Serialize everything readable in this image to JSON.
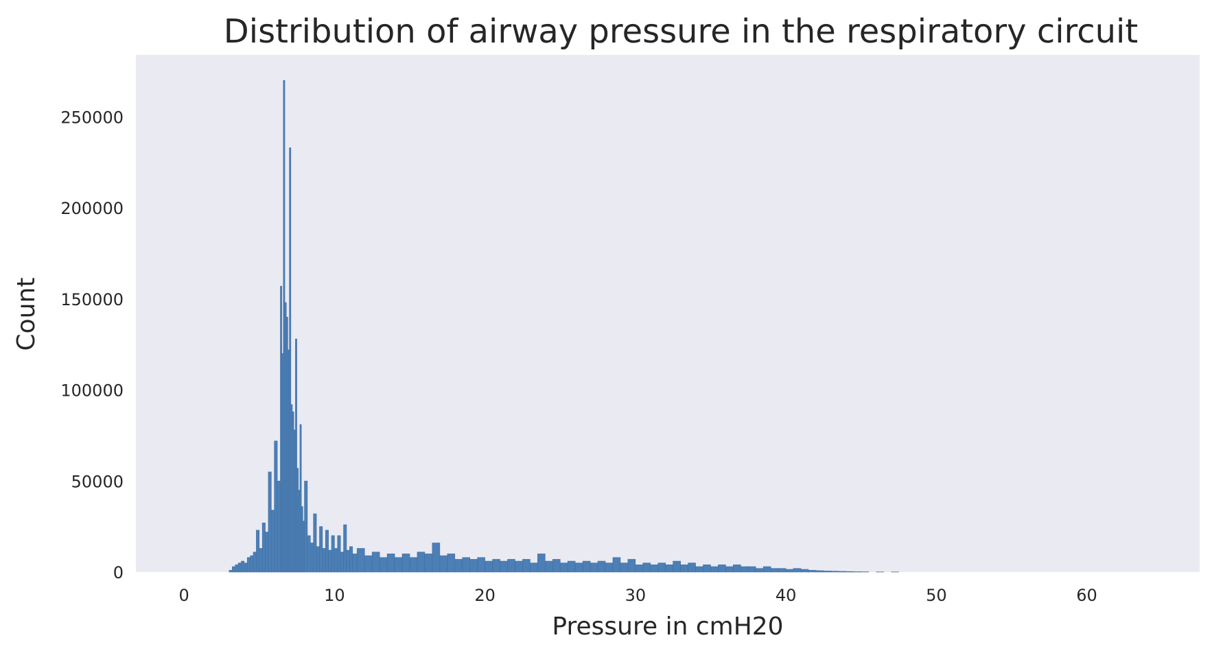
{
  "chart_data": {
    "type": "histogram",
    "title": "Distribution of airway pressure in the respiratory circuit",
    "xlabel": "Pressure in cmH20",
    "ylabel": "Count",
    "xlim": [
      -3.2,
      67.5
    ],
    "ylim": [
      0,
      284000
    ],
    "xticks": [
      0,
      10,
      20,
      30,
      40,
      50,
      60
    ],
    "yticks": [
      0,
      50000,
      100000,
      150000,
      200000,
      250000
    ],
    "grid": false,
    "bar_color": "#4c7fb5",
    "bar_edge_color": "#3f6fa3",
    "plot_background": "#eaeaf2",
    "bins": [
      [
        3.0,
        1000
      ],
      [
        3.2,
        3000
      ],
      [
        3.4,
        4000
      ],
      [
        3.6,
        5000
      ],
      [
        3.8,
        6000
      ],
      [
        4.0,
        5000
      ],
      [
        4.2,
        8000
      ],
      [
        4.4,
        9000
      ],
      [
        4.6,
        11000
      ],
      [
        4.8,
        23000
      ],
      [
        5.0,
        13000
      ],
      [
        5.2,
        27000
      ],
      [
        5.4,
        22000
      ],
      [
        5.6,
        55000
      ],
      [
        5.8,
        34000
      ],
      [
        6.0,
        72000
      ],
      [
        6.2,
        50000
      ],
      [
        6.4,
        157000
      ],
      [
        6.5,
        120000
      ],
      [
        6.6,
        270000
      ],
      [
        6.7,
        148000
      ],
      [
        6.8,
        140000
      ],
      [
        6.9,
        122000
      ],
      [
        7.0,
        233000
      ],
      [
        7.1,
        92000
      ],
      [
        7.2,
        88000
      ],
      [
        7.3,
        78000
      ],
      [
        7.4,
        128000
      ],
      [
        7.5,
        57000
      ],
      [
        7.6,
        45000
      ],
      [
        7.7,
        81000
      ],
      [
        7.8,
        36000
      ],
      [
        7.9,
        28000
      ],
      [
        8.0,
        50000
      ],
      [
        8.2,
        20000
      ],
      [
        8.4,
        16000
      ],
      [
        8.6,
        32000
      ],
      [
        8.8,
        14000
      ],
      [
        9.0,
        25000
      ],
      [
        9.2,
        13000
      ],
      [
        9.4,
        23000
      ],
      [
        9.6,
        12000
      ],
      [
        9.8,
        20000
      ],
      [
        10.0,
        13000
      ],
      [
        10.2,
        20000
      ],
      [
        10.4,
        11000
      ],
      [
        10.6,
        26000
      ],
      [
        10.8,
        12000
      ],
      [
        11.0,
        14000
      ],
      [
        11.2,
        10000
      ],
      [
        11.5,
        13000
      ],
      [
        12.0,
        9000
      ],
      [
        12.5,
        11000
      ],
      [
        13.0,
        8000
      ],
      [
        13.5,
        10000
      ],
      [
        14.0,
        8000
      ],
      [
        14.5,
        10000
      ],
      [
        15.0,
        8000
      ],
      [
        15.5,
        11000
      ],
      [
        16.0,
        10000
      ],
      [
        16.5,
        16000
      ],
      [
        17.0,
        9000
      ],
      [
        17.5,
        10000
      ],
      [
        18.0,
        7000
      ],
      [
        18.5,
        8000
      ],
      [
        19.0,
        7000
      ],
      [
        19.5,
        8000
      ],
      [
        20.0,
        6000
      ],
      [
        20.5,
        7000
      ],
      [
        21.0,
        6000
      ],
      [
        21.5,
        7000
      ],
      [
        22.0,
        6000
      ],
      [
        22.5,
        7000
      ],
      [
        23.0,
        5000
      ],
      [
        23.5,
        10000
      ],
      [
        24.0,
        6000
      ],
      [
        24.5,
        7000
      ],
      [
        25.0,
        5000
      ],
      [
        25.5,
        6000
      ],
      [
        26.0,
        5000
      ],
      [
        26.5,
        6000
      ],
      [
        27.0,
        5000
      ],
      [
        27.5,
        6000
      ],
      [
        28.0,
        5000
      ],
      [
        28.5,
        8000
      ],
      [
        29.0,
        5000
      ],
      [
        29.5,
        7000
      ],
      [
        30.0,
        4000
      ],
      [
        30.5,
        5000
      ],
      [
        31.0,
        4000
      ],
      [
        31.5,
        5000
      ],
      [
        32.0,
        4000
      ],
      [
        32.5,
        6000
      ],
      [
        33.0,
        4000
      ],
      [
        33.5,
        5000
      ],
      [
        34.0,
        3000
      ],
      [
        34.5,
        4000
      ],
      [
        35.0,
        3000
      ],
      [
        35.5,
        4000
      ],
      [
        36.0,
        3000
      ],
      [
        36.5,
        4000
      ],
      [
        37.0,
        3000
      ],
      [
        37.5,
        3000
      ],
      [
        38.0,
        2000
      ],
      [
        38.5,
        3000
      ],
      [
        39.0,
        2000
      ],
      [
        39.5,
        2000
      ],
      [
        40.0,
        1500
      ],
      [
        40.5,
        2000
      ],
      [
        41.0,
        1500
      ],
      [
        41.5,
        1000
      ],
      [
        42.0,
        800
      ],
      [
        42.5,
        600
      ],
      [
        43.0,
        500
      ],
      [
        43.5,
        400
      ],
      [
        44.0,
        300
      ],
      [
        44.5,
        200
      ],
      [
        45.0,
        150
      ],
      [
        46.0,
        100
      ],
      [
        47.0,
        80
      ]
    ]
  }
}
